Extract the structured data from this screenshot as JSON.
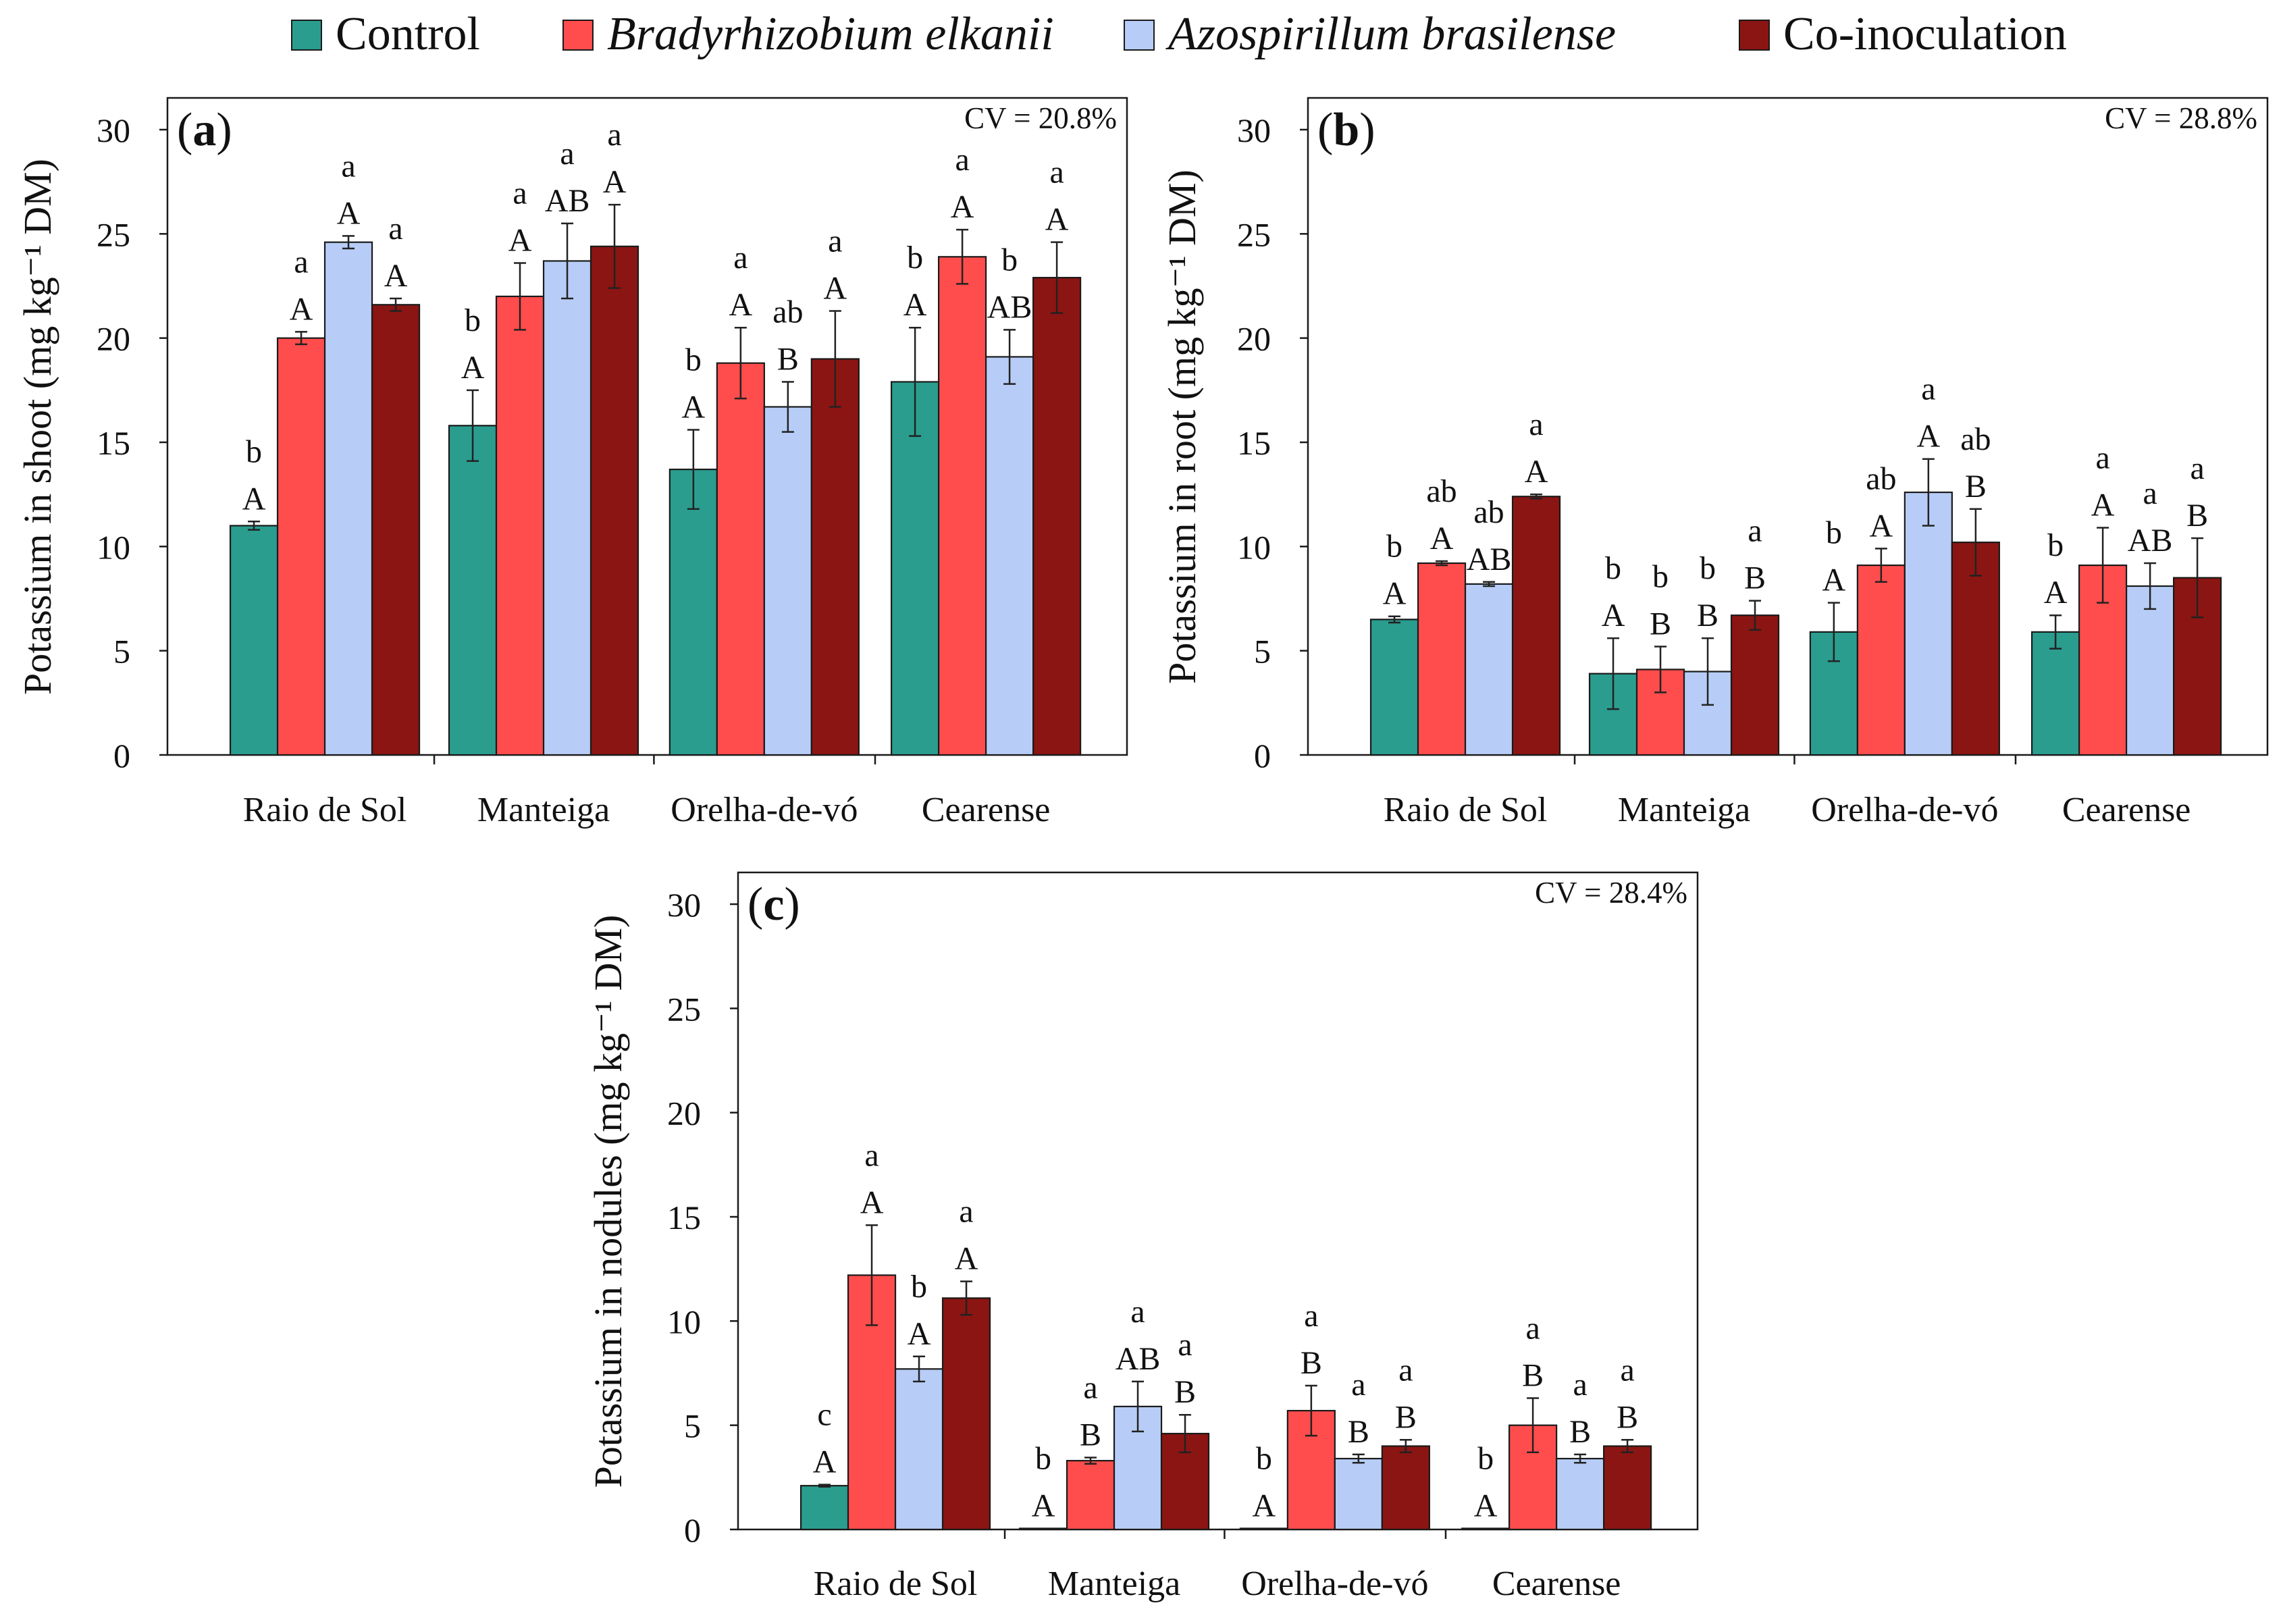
{
  "legend": [
    {
      "name": "Control",
      "color": "#2a9d8f",
      "italic": false
    },
    {
      "name": "Bradyrhizobium elkanii",
      "color": "#ff4d4d",
      "italic": true
    },
    {
      "name": "Azospirillum brasilense",
      "color": "#b7cdf7",
      "italic": true
    },
    {
      "name": "Co-inoculation",
      "color": "#8b1512",
      "italic": false
    }
  ],
  "chart_data": [
    {
      "type": "bar",
      "panel": "a",
      "ylabel": "Potassium in shoot (mg kg⁻¹ DM)",
      "ylim": [
        0,
        30
      ],
      "yticks": [
        0,
        5,
        10,
        15,
        20,
        25,
        30
      ],
      "cv": "CV = 20.8%",
      "categories": [
        "Raio de Sol",
        "Manteiga",
        "Orelha-de-vó",
        "Cearense"
      ],
      "series": [
        {
          "name": "Control",
          "values": [
            11.0,
            15.8,
            13.7,
            17.9
          ],
          "errors": [
            0.2,
            1.7,
            1.9,
            2.6
          ],
          "lower": [
            "b",
            "b",
            "b",
            "b"
          ],
          "upper": [
            "A",
            "A",
            "A",
            "A"
          ]
        },
        {
          "name": "Bradyrhizobium elkanii",
          "values": [
            20.0,
            22.0,
            18.8,
            23.9
          ],
          "errors": [
            0.3,
            1.6,
            1.7,
            1.3
          ],
          "lower": [
            "a",
            "a",
            "a",
            "a"
          ],
          "upper": [
            "A",
            "A",
            "A",
            "A"
          ]
        },
        {
          "name": "Azospirillum brasilense",
          "values": [
            24.6,
            23.7,
            16.7,
            19.1
          ],
          "errors": [
            0.3,
            1.8,
            1.2,
            1.3
          ],
          "lower": [
            "a",
            "a",
            "ab",
            "b"
          ],
          "upper": [
            "A",
            "AB",
            "B",
            "AB"
          ]
        },
        {
          "name": "Co-inoculation",
          "values": [
            21.6,
            24.4,
            19.0,
            22.9
          ],
          "errors": [
            0.3,
            2.0,
            2.3,
            1.7
          ],
          "lower": [
            "a",
            "a",
            "a",
            "a"
          ],
          "upper": [
            "A",
            "A",
            "A",
            "A"
          ]
        }
      ]
    },
    {
      "type": "bar",
      "panel": "b",
      "ylabel": "Potassium in root (mg kg⁻¹ DM)",
      "ylim": [
        0,
        30
      ],
      "yticks": [
        0,
        5,
        10,
        15,
        20,
        25,
        30
      ],
      "cv": "CV = 28.8%",
      "categories": [
        "Raio de Sol",
        "Manteiga",
        "Orelha-de-vó",
        "Cearense"
      ],
      "series": [
        {
          "name": "Control",
          "values": [
            6.5,
            3.9,
            5.9,
            5.9
          ],
          "errors": [
            0.15,
            1.7,
            1.4,
            0.8
          ],
          "lower": [
            "b",
            "b",
            "b",
            "b"
          ],
          "upper": [
            "A",
            "A",
            "A",
            "A"
          ]
        },
        {
          "name": "Bradyrhizobium elkanii",
          "values": [
            9.2,
            4.1,
            9.1,
            9.1
          ],
          "errors": [
            0.1,
            1.1,
            0.8,
            1.8
          ],
          "lower": [
            "ab",
            "b",
            "ab",
            "a"
          ],
          "upper": [
            "A",
            "B",
            "A",
            "A"
          ]
        },
        {
          "name": "Azospirillum brasilense",
          "values": [
            8.2,
            4.0,
            12.6,
            8.1
          ],
          "errors": [
            0.1,
            1.6,
            1.6,
            1.1
          ],
          "lower": [
            "ab",
            "b",
            "a",
            "a"
          ],
          "upper": [
            "AB",
            "B",
            "A",
            "AB"
          ]
        },
        {
          "name": "Co-inoculation",
          "values": [
            12.4,
            6.7,
            10.2,
            8.5
          ],
          "errors": [
            0.1,
            0.7,
            1.6,
            1.9
          ],
          "lower": [
            "a",
            "a",
            "ab",
            "a"
          ],
          "upper": [
            "A",
            "B",
            "B",
            "B"
          ]
        }
      ]
    },
    {
      "type": "bar",
      "panel": "c",
      "ylabel": "Potassium in nodules (mg kg⁻¹ DM)",
      "ylim": [
        0,
        30
      ],
      "yticks": [
        0,
        5,
        10,
        15,
        20,
        25,
        30
      ],
      "cv": "CV = 28.4%",
      "categories": [
        "Raio de Sol",
        "Manteiga",
        "Orelha-de-vó",
        "Cearense"
      ],
      "series": [
        {
          "name": "Control",
          "values": [
            2.1,
            0.05,
            0.05,
            0.05
          ],
          "errors": [
            0.05,
            0,
            0,
            0
          ],
          "lower": [
            "c",
            "b",
            "b",
            "b"
          ],
          "upper": [
            "A",
            "A",
            "A",
            "A"
          ]
        },
        {
          "name": "Bradyrhizobium elkanii",
          "values": [
            12.2,
            3.3,
            5.7,
            5.0
          ],
          "errors": [
            2.4,
            0.15,
            1.2,
            1.3
          ],
          "lower": [
            "a",
            "a",
            "a",
            "a"
          ],
          "upper": [
            "A",
            "B",
            "B",
            "B"
          ]
        },
        {
          "name": "Azospirillum brasilense",
          "values": [
            7.7,
            5.9,
            3.4,
            3.4
          ],
          "errors": [
            0.6,
            1.2,
            0.2,
            0.2
          ],
          "lower": [
            "b",
            "a",
            "a",
            "a"
          ],
          "upper": [
            "A",
            "AB",
            "B",
            "B"
          ]
        },
        {
          "name": "Co-inoculation",
          "values": [
            11.1,
            4.6,
            4.0,
            4.0
          ],
          "errors": [
            0.8,
            0.9,
            0.3,
            0.3
          ],
          "lower": [
            "a",
            "a",
            "a",
            "a"
          ],
          "upper": [
            "A",
            "B",
            "B",
            "B"
          ]
        }
      ]
    }
  ]
}
